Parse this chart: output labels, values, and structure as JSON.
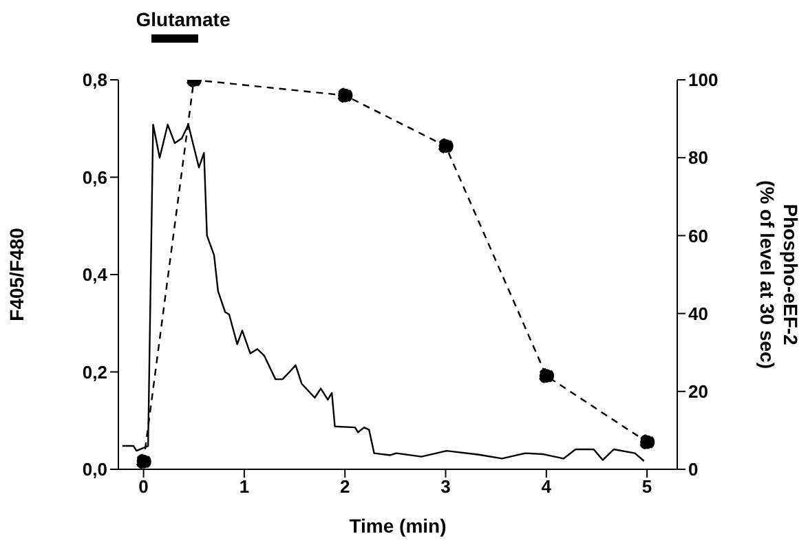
{
  "chart_data": {
    "type": "line",
    "xlabel": "Time (min)",
    "ylabel": "F405/F480",
    "y2label": "Phospho-eEF-2\n(% of level at 30 sec)",
    "xlim": [
      -0.25,
      5.3
    ],
    "xticks": [
      0,
      1,
      2,
      3,
      4,
      5
    ],
    "ylim": [
      0,
      0.8
    ],
    "yticks": [
      {
        "value": 0,
        "label": "0,0"
      },
      {
        "value": 0.2,
        "label": "0,2"
      },
      {
        "value": 0.4,
        "label": "0,4"
      },
      {
        "value": 0.6,
        "label": "0,6"
      },
      {
        "value": 0.8,
        "label": "0,8"
      }
    ],
    "y2lim": [
      0,
      100
    ],
    "y2ticks": [
      0,
      20,
      40,
      60,
      80,
      100
    ],
    "annotations": [
      "Glutamate"
    ],
    "series": [
      {
        "color": "#000000",
        "marker": "none",
        "line_style": "solid",
        "x": [
          -0.21,
          -0.1,
          -0.07,
          0.045,
          0.095,
          0.16,
          0.24,
          0.31,
          0.38,
          0.445,
          0.49,
          0.55,
          0.6,
          0.63,
          0.7,
          0.74,
          0.81,
          0.85,
          0.93,
          0.98,
          1.06,
          1.13,
          1.2,
          1.31,
          1.38,
          1.45,
          1.51,
          1.57,
          1.7,
          1.76,
          1.83,
          1.87,
          1.9,
          2.1,
          2.13,
          2.19,
          2.24,
          2.29,
          2.45,
          2.51,
          2.76,
          3.01,
          3.33,
          3.56,
          3.79,
          3.97,
          4.17,
          4.29,
          4.47,
          4.56,
          4.67,
          4.88,
          4.97
        ],
        "values": [
          0.048,
          0.048,
          0.038,
          0.048,
          0.708,
          0.64,
          0.708,
          0.67,
          0.68,
          0.708,
          0.67,
          0.62,
          0.65,
          0.48,
          0.44,
          0.366,
          0.323,
          0.318,
          0.257,
          0.285,
          0.238,
          0.247,
          0.233,
          0.185,
          0.185,
          0.2,
          0.214,
          0.176,
          0.147,
          0.166,
          0.143,
          0.157,
          0.088,
          0.086,
          0.076,
          0.086,
          0.081,
          0.033,
          0.029,
          0.033,
          0.026,
          0.038,
          0.03,
          0.022,
          0.033,
          0.031,
          0.022,
          0.041,
          0.041,
          0.019,
          0.041,
          0.033,
          0.017
        ]
      },
      {
        "axis": "y2",
        "color": "#000000",
        "marker": "circle",
        "line_style": "dashed",
        "x": [
          0,
          0.5,
          2,
          3,
          4,
          5
        ],
        "values": [
          2,
          100,
          96,
          83,
          24,
          7
        ]
      }
    ]
  }
}
